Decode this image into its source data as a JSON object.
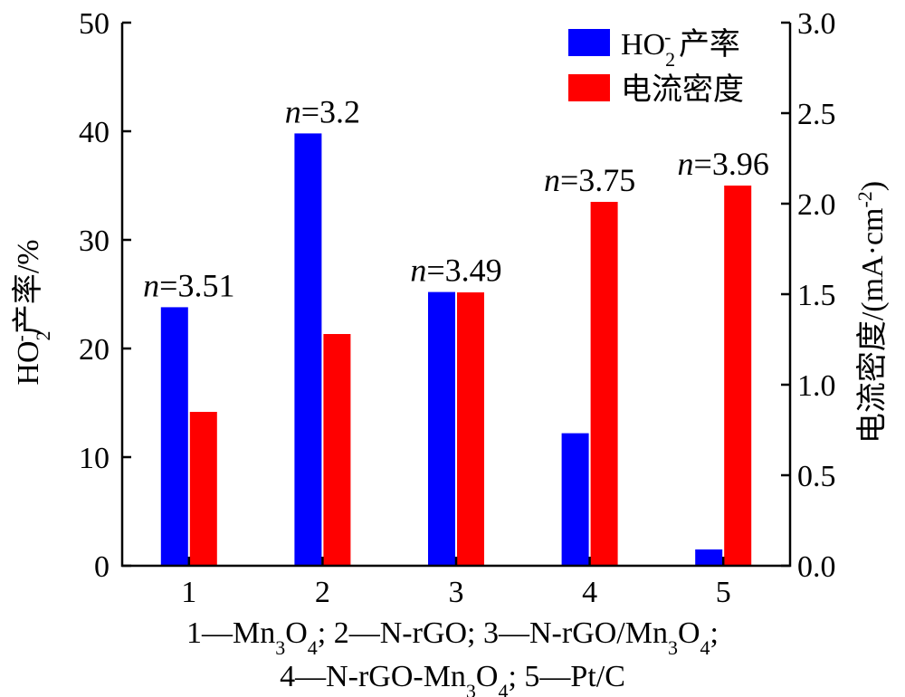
{
  "chart_data": {
    "type": "bar",
    "categories": [
      "1",
      "2",
      "3",
      "4",
      "5"
    ],
    "series": [
      {
        "name": "HO2- 产率",
        "axis": "left",
        "color": "#0000ff",
        "values": [
          23.8,
          39.8,
          25.2,
          12.2,
          1.5
        ]
      },
      {
        "name": "电流密度",
        "axis": "right",
        "color": "#ff0000",
        "values": [
          0.85,
          1.28,
          1.51,
          2.01,
          2.1
        ]
      }
    ],
    "y_left": {
      "label_main": "HO",
      "label_sub": "2",
      "label_sup": "-",
      "label_rest": "产率/%",
      "range": [
        0,
        50
      ],
      "ticks": [
        "0",
        "10",
        "20",
        "30",
        "40",
        "50"
      ]
    },
    "y_right": {
      "label_main": "电流密度/(mA·cm",
      "label_sup": "-2",
      "label_end": ")",
      "range": [
        0,
        3
      ],
      "ticks": [
        "0.0",
        "0.5",
        "1.0",
        "1.5",
        "2.0",
        "2.5",
        "3.0"
      ]
    },
    "legend": {
      "placement": "top-right",
      "items": [
        {
          "main": "HO",
          "sub": "2",
          "sup": "-",
          "rest": " 产率",
          "color": "#0000ff"
        },
        {
          "main": "电流密度",
          "sub": "",
          "sup": "",
          "rest": "",
          "color": "#ff0000"
        }
      ]
    },
    "annotations": [
      {
        "prefix": "n",
        "text": "=3.51"
      },
      {
        "prefix": "n",
        "text": "=3.2"
      },
      {
        "prefix": "n",
        "text": "=3.49"
      },
      {
        "prefix": "n",
        "text": "=3.75"
      },
      {
        "prefix": "n",
        "text": "=3.96"
      }
    ],
    "caption": {
      "line1": [
        {
          "t": "1—Mn"
        },
        {
          "t": "3",
          "sub": true
        },
        {
          "t": "O"
        },
        {
          "t": "4",
          "sub": true
        },
        {
          "t": "; 2—N-rGO; 3—N-rGO/Mn"
        },
        {
          "t": "3",
          "sub": true
        },
        {
          "t": "O"
        },
        {
          "t": "4",
          "sub": true
        },
        {
          "t": ";"
        }
      ],
      "line2": [
        {
          "t": "4—N-rGO-Mn"
        },
        {
          "t": "3",
          "sub": true
        },
        {
          "t": "O"
        },
        {
          "t": "4",
          "sub": true
        },
        {
          "t": "; 5—Pt/C"
        }
      ]
    },
    "grid": false
  }
}
